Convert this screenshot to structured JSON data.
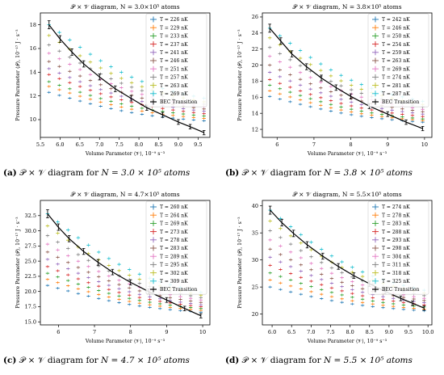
{
  "figure": {
    "panels": [
      {
        "id": "a",
        "caption_label": "(a)",
        "caption_text": "𝒫 × 𝒱 diagram for",
        "caption_math": "N = 3.0 × 10⁵ atoms",
        "chart_data": {
          "type": "scatter",
          "title": "𝒫 × 𝒱 diagram, N = 3.0×10⁵ atoms",
          "xlabel": "Volume Parameter ⟨𝒱⟩, 10⁻⁹ s⁻³",
          "ylabel": "Pressure Parameter ⟨𝒫⟩, 10⁻¹⁷ J · s⁻³",
          "xlim": [
            5.5,
            9.8
          ],
          "ylim": [
            8.5,
            19
          ],
          "xticks": [
            5.5,
            6.0,
            6.5,
            7.0,
            7.5,
            8.0,
            8.5,
            9.0,
            9.5
          ],
          "yticks": [
            10,
            12,
            14,
            16,
            18
          ],
          "x_start": 5.72,
          "x_end": 9.65,
          "legend_position": "top-right",
          "temperatures": [
            "T = 226 nK",
            "T = 229 nK",
            "T = 233 nK",
            "T = 237 nK",
            "T = 241 nK",
            "T = 246 nK",
            "T = 251 nK",
            "T = 257 nK",
            "T = 263 nK",
            "T = 269 nK"
          ],
          "series_start": [
            12.3,
            12.8,
            13.2,
            13.8,
            14.3,
            14.9,
            15.6,
            16.3,
            17.1,
            18.0
          ],
          "series_end": [
            9.9,
            10.1,
            10.3,
            10.5,
            10.7,
            10.9,
            11.1,
            11.3,
            11.5,
            11.8
          ],
          "bec_transition": {
            "name": "BEC Transition",
            "x": [
              5.72,
              6.0,
              6.3,
              6.6,
              7.0,
              7.4,
              7.8,
              8.2,
              8.6,
              9.0,
              9.3,
              9.65
            ],
            "y": [
              18.0,
              16.8,
              15.7,
              14.7,
              13.6,
              12.6,
              11.8,
              11.0,
              10.4,
              9.8,
              9.4,
              8.9
            ]
          }
        }
      },
      {
        "id": "b",
        "caption_label": "(b)",
        "caption_text": "𝒫 × 𝒱 diagram for",
        "caption_math": "N = 3.8 × 10⁵ atoms",
        "chart_data": {
          "type": "scatter",
          "title": "𝒫 × 𝒱 diagram, N = 3.8×10⁵ atoms",
          "xlabel": "Volume Parameter ⟨𝒱⟩, 10⁻⁹ s⁻³",
          "ylabel": "Pressure Parameter ⟨𝒫⟩, 10⁻¹⁷ J · s⁻³",
          "xlim": [
            5.6,
            10.2
          ],
          "ylim": [
            11,
            26.5
          ],
          "xticks": [
            6,
            7,
            8,
            9,
            10
          ],
          "yticks": [
            12,
            14,
            16,
            18,
            20,
            22,
            24,
            26
          ],
          "x_start": 5.8,
          "x_end": 9.95,
          "legend_position": "top-right",
          "temperatures": [
            "T = 242 nK",
            "T = 246 nK",
            "T = 250 nK",
            "T = 254 nK",
            "T = 259 nK",
            "T = 263 nK",
            "T = 269 nK",
            "T = 274 nK",
            "T = 281 nK",
            "T = 287 nK"
          ],
          "series_start": [
            16.1,
            16.8,
            17.5,
            18.2,
            19.1,
            20.0,
            21.1,
            22.2,
            23.4,
            24.6
          ],
          "series_end": [
            12.9,
            13.1,
            13.3,
            13.6,
            13.9,
            14.2,
            14.5,
            14.8,
            15.1,
            15.5
          ],
          "bec_transition": {
            "name": "BEC Transition",
            "x": [
              5.8,
              6.1,
              6.4,
              6.8,
              7.2,
              7.6,
              8.0,
              8.5,
              9.0,
              9.5,
              9.95
            ],
            "y": [
              24.6,
              23.0,
              21.4,
              19.8,
              18.4,
              17.2,
              16.1,
              14.9,
              13.9,
              12.9,
              12.1
            ]
          }
        }
      },
      {
        "id": "c",
        "caption_label": "(c)",
        "caption_text": "𝒫 × 𝒱 diagram for",
        "caption_math": "N = 4.7 × 10⁵ atoms",
        "chart_data": {
          "type": "scatter",
          "title": "𝒫 × 𝒱 diagram, N = 4.7×10⁵ atoms",
          "xlabel": "Volume Parameter ⟨𝒱⟩, 10⁻⁹ s⁻³",
          "ylabel": "Pressure Parameter ⟨𝒫⟩, 10⁻¹⁷ J · s⁻³",
          "xlim": [
            5.5,
            10.2
          ],
          "ylim": [
            14.5,
            35
          ],
          "xticks": [
            6,
            7,
            8,
            9,
            10
          ],
          "yticks": [
            15.0,
            17.5,
            20.0,
            22.5,
            25.0,
            27.5,
            30.0,
            32.5
          ],
          "x_start": 5.7,
          "x_end": 9.95,
          "legend_position": "top-right",
          "temperatures": [
            "T = 260 nK",
            "T = 264 nK",
            "T = 269 nK",
            "T = 273 nK",
            "T = 278 nK",
            "T = 283 nK",
            "T = 289 nK",
            "T = 295 nK",
            "T = 302 nK",
            "T = 309 nK"
          ],
          "series_start": [
            21.0,
            22.0,
            23.0,
            24.1,
            25.3,
            26.5,
            27.8,
            29.2,
            30.8,
            32.8
          ],
          "series_end": [
            16.6,
            16.9,
            17.2,
            17.5,
            17.8,
            18.2,
            18.6,
            19.0,
            19.4,
            19.9
          ],
          "bec_transition": {
            "name": "BEC Transition",
            "x": [
              5.7,
              6.0,
              6.3,
              6.7,
              7.1,
              7.5,
              8.0,
              8.5,
              9.0,
              9.5,
              9.95
            ],
            "y": [
              32.8,
              30.6,
              28.7,
              26.6,
              24.8,
              23.2,
              21.5,
              20.0,
              18.6,
              17.2,
              16.0
            ]
          }
        }
      },
      {
        "id": "d",
        "caption_label": "(d)",
        "caption_text": "𝒫 × 𝒱 diagram for",
        "caption_math": "N = 5.5 × 10⁵ atoms",
        "chart_data": {
          "type": "scatter",
          "title": "𝒫 × 𝒱 diagram, N = 5.5×10⁵ atoms",
          "xlabel": "Volume Parameter ⟨𝒱⟩, 10⁻⁹ s⁻³",
          "ylabel": "Pressure Parameter ⟨𝒫⟩, 10⁻¹⁷ J · s⁻³",
          "xlim": [
            5.75,
            10.1
          ],
          "ylim": [
            18,
            41
          ],
          "xticks": [
            6.0,
            6.5,
            7.0,
            7.5,
            8.0,
            8.5,
            9.0,
            9.5,
            10.0
          ],
          "yticks": [
            20,
            25,
            30,
            35,
            40
          ],
          "x_start": 5.95,
          "x_end": 9.9,
          "legend_position": "top-right",
          "temperatures": [
            "T = 274 nK",
            "T = 278 nK",
            "T = 283 nK",
            "T = 288 nK",
            "T = 293 nK",
            "T = 298 nK",
            "T = 304 nK",
            "T = 311 nK",
            "T = 318 nK",
            "T = 325 nK"
          ],
          "series_start": [
            25.0,
            26.3,
            27.6,
            29.0,
            30.5,
            32.0,
            33.7,
            35.4,
            37.2,
            39.2
          ],
          "series_end": [
            20.6,
            20.9,
            21.3,
            21.7,
            22.1,
            22.5,
            22.9,
            23.4,
            23.9,
            24.4
          ],
          "bec_transition": {
            "name": "BEC Transition",
            "x": [
              5.95,
              6.25,
              6.55,
              6.9,
              7.3,
              7.7,
              8.1,
              8.5,
              8.9,
              9.3,
              9.6,
              9.9
            ],
            "y": [
              39.2,
              36.9,
              34.9,
              32.8,
              30.7,
              28.8,
              27.1,
              25.6,
              24.2,
              22.9,
              22.0,
              21.1
            ]
          }
        }
      }
    ],
    "series_colors": [
      "#1f77b4",
      "#ff7f0e",
      "#2ca02c",
      "#d62728",
      "#9467bd",
      "#8c564b",
      "#e377c2",
      "#7f7f7f",
      "#bcbd22",
      "#17becf"
    ],
    "bec_color": "#000000"
  }
}
